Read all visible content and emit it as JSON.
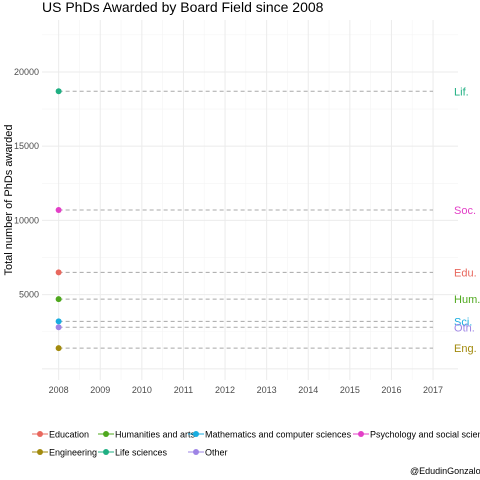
{
  "chart_data": {
    "type": "scatter",
    "title": "US PhDs Awarded by Board Field since 2008",
    "xlabel": "",
    "ylabel": "Total number of PhDs awarded",
    "xlim": [
      2007.6,
      2017.6
    ],
    "ylim": [
      -750,
      23500
    ],
    "x_ticks": [
      2008,
      2009,
      2010,
      2011,
      2012,
      2013,
      2014,
      2015,
      2016,
      2017
    ],
    "y_ticks": [
      5000,
      10000,
      15000,
      20000
    ],
    "grid": true,
    "legend_position": "bottom",
    "series": [
      {
        "name": "Education",
        "short": "Edu.",
        "color": "#E8685E",
        "points": [
          {
            "x": 2008,
            "y": 6500
          }
        ]
      },
      {
        "name": "Humanities and arts",
        "short": "Hum.",
        "color": "#4FA81E",
        "points": [
          {
            "x": 2008,
            "y": 4700
          }
        ]
      },
      {
        "name": "Mathematics and computer sciences",
        "short": "Sci.",
        "color": "#19ADE0",
        "points": [
          {
            "x": 2008,
            "y": 3200
          }
        ]
      },
      {
        "name": "Psychology and social sciences",
        "short": "Soc.",
        "color": "#E33FC7",
        "points": [
          {
            "x": 2008,
            "y": 10700
          }
        ]
      },
      {
        "name": "Engineering",
        "short": "Eng.",
        "color": "#A28A0D",
        "points": [
          {
            "x": 2008,
            "y": 1400
          }
        ]
      },
      {
        "name": "Life sciences",
        "short": "Lif.",
        "color": "#1FAF82",
        "points": [
          {
            "x": 2008,
            "y": 18700
          }
        ]
      },
      {
        "name": "Other",
        "short": "Oth.",
        "color": "#9E84E5",
        "points": [
          {
            "x": 2008,
            "y": 2800
          }
        ]
      }
    ]
  },
  "legend_visible": [
    "Education",
    "Humanities and arts",
    "Mathematics and computer sciences",
    "Psychology and social scienc",
    "Engineering",
    "Life sciences",
    "Other"
  ],
  "credit": "@EdudinGonzalo"
}
